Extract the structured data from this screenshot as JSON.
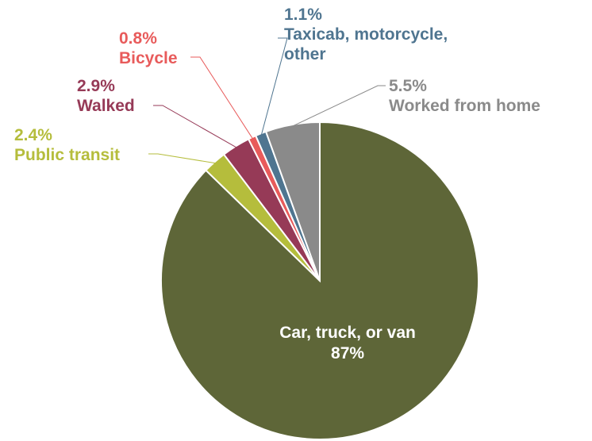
{
  "chart_data": {
    "type": "pie",
    "categories": [
      "Car, truck, or van",
      "Public transit",
      "Walked",
      "Bicycle",
      "Taxicab, motorcycle, other",
      "Worked from home"
    ],
    "values": [
      87,
      2.4,
      2.9,
      0.8,
      1.1,
      5.5
    ],
    "value_labels": [
      "87%",
      "2.4%",
      "2.9%",
      "0.8%",
      "1.1%",
      "5.5%"
    ],
    "colors": [
      "#5e6638",
      "#b5bd3c",
      "#963a57",
      "#e85b5b",
      "#4f7590",
      "#8a8a8a"
    ]
  }
}
